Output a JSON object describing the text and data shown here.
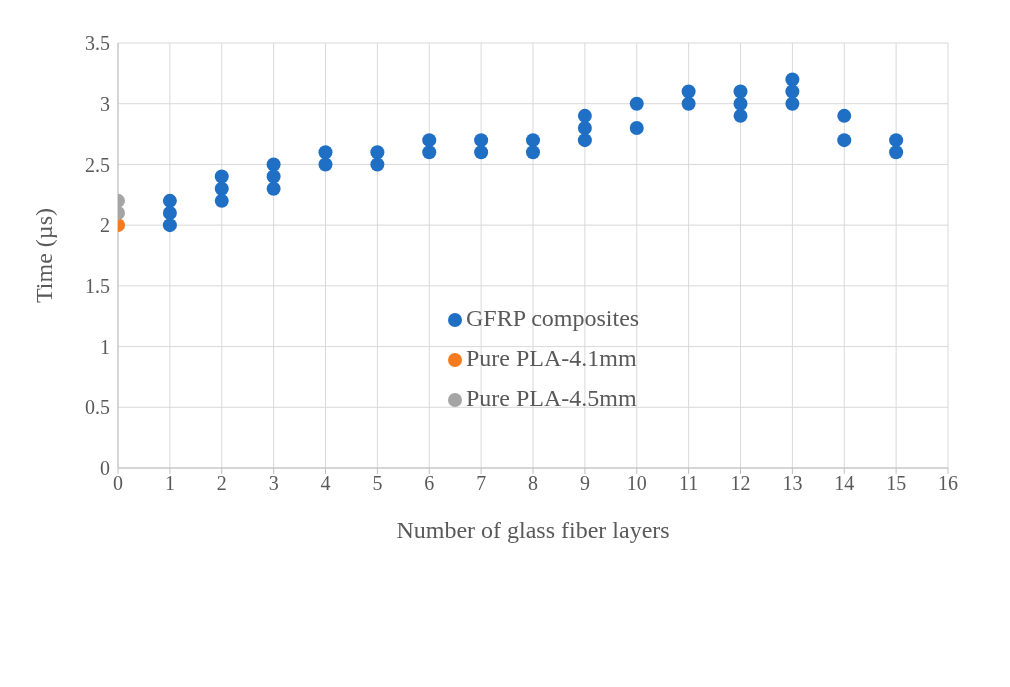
{
  "chart_data": {
    "type": "scatter",
    "xlabel": "Number of glass fiber layers",
    "ylabel": "Time (µs)",
    "xlim": [
      0,
      16
    ],
    "xticks": [
      0,
      1,
      2,
      3,
      4,
      5,
      6,
      7,
      8,
      9,
      10,
      11,
      12,
      13,
      14,
      15,
      16
    ],
    "ylim": [
      0,
      3.5
    ],
    "yticks": [
      0,
      0.5,
      1,
      1.5,
      2,
      2.5,
      3,
      3.5
    ],
    "grid": true,
    "legend": "center",
    "marker": "circle",
    "series": [
      {
        "name": "GFRP composites",
        "color": "#1f6fc5",
        "x": [
          1,
          1,
          1,
          2,
          2,
          2,
          3,
          3,
          3,
          4,
          4,
          5,
          5,
          6,
          6,
          7,
          7,
          8,
          8,
          9,
          9,
          9,
          10,
          10,
          11,
          11,
          12,
          12,
          12,
          13,
          13,
          13,
          14,
          14,
          15,
          15
        ],
        "values": [
          2.2,
          2.1,
          2.0,
          2.4,
          2.3,
          2.2,
          2.5,
          2.4,
          2.3,
          2.6,
          2.5,
          2.6,
          2.5,
          2.7,
          2.6,
          2.7,
          2.6,
          2.7,
          2.6,
          2.9,
          2.8,
          2.7,
          3.0,
          2.8,
          3.1,
          3.0,
          3.1,
          3.0,
          2.9,
          3.2,
          3.1,
          3.0,
          2.9,
          2.7,
          2.7,
          2.6
        ]
      },
      {
        "name": "Pure PLA-4.1mm",
        "color": "#f47b20",
        "x": [
          0
        ],
        "values": [
          2.0
        ]
      },
      {
        "name": "Pure PLA-4.5mm",
        "color": "#a5a5a5",
        "x": [
          0,
          0
        ],
        "values": [
          2.2,
          2.1
        ]
      }
    ]
  }
}
